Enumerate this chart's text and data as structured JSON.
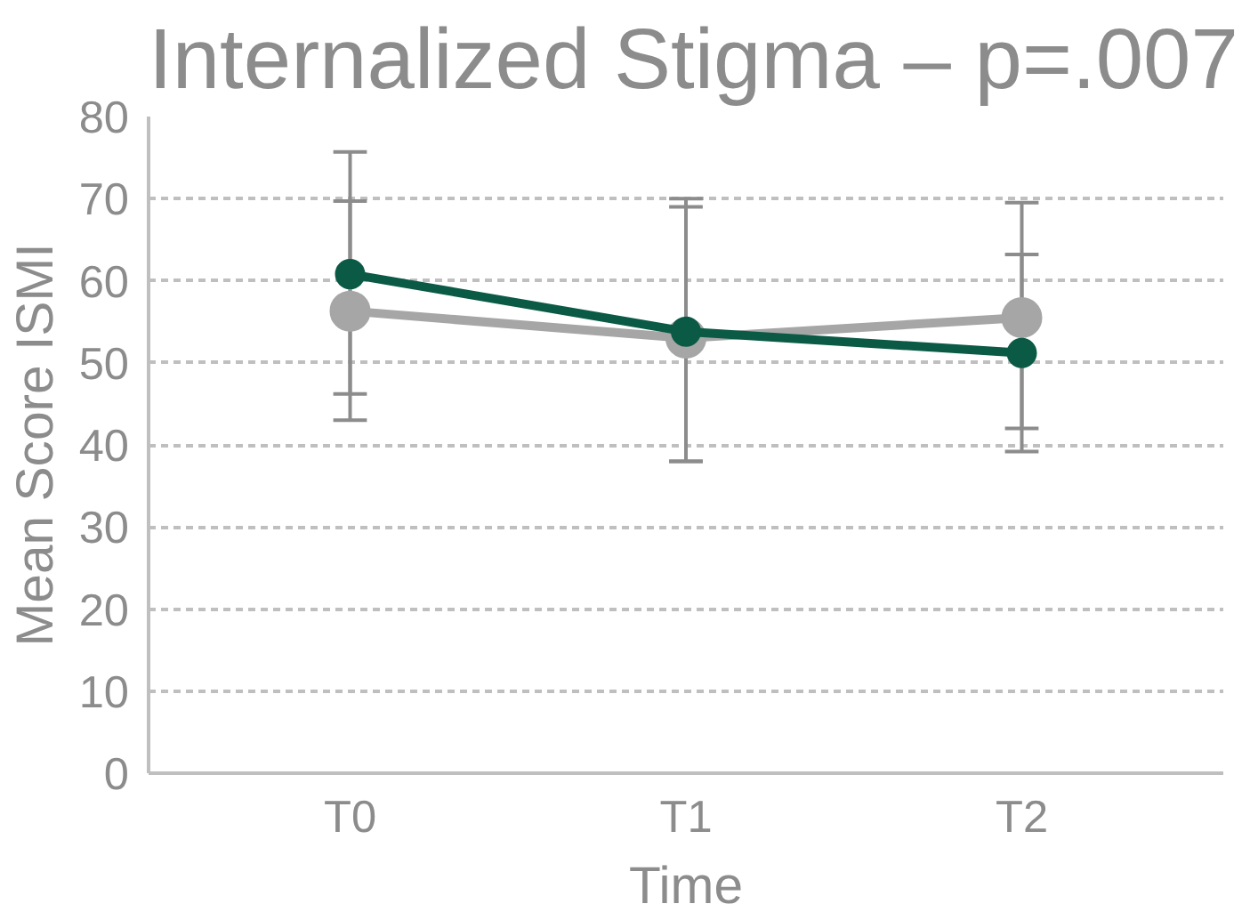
{
  "chart_data": {
    "type": "line",
    "title": "Internalized Stigma – p=.007",
    "xlabel": "Time",
    "ylabel": "Mean Score ISMI",
    "categories": [
      "T0",
      "T1",
      "T2"
    ],
    "series": [
      {
        "color": "#a6a6a6",
        "values": [
          56.3,
          53,
          55.5
        ],
        "errors": [
          [
            46.2,
            69.7
          ],
          [
            38,
            69
          ],
          [
            42,
            69.5
          ]
        ]
      },
      {
        "color": "#0b5a45",
        "values": [
          60.8,
          53.8,
          51.2
        ],
        "errors": [
          [
            43,
            75.7
          ],
          [
            38,
            70
          ],
          [
            39.2,
            63.2
          ]
        ]
      }
    ],
    "ylim": [
      0,
      80
    ],
    "yticks": [
      0,
      10,
      20,
      30,
      40,
      50,
      60,
      70,
      80
    ],
    "grid": "y",
    "marker": "circle",
    "line_style": "solid"
  }
}
